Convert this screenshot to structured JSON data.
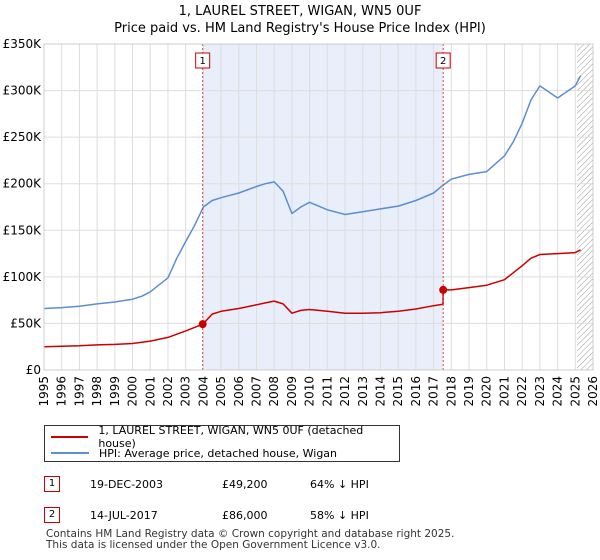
{
  "title_line1": "1, LAUREL STREET, WIGAN, WN5 0UF",
  "title_line2": "Price paid vs. HM Land Registry's House Price Index (HPI)",
  "chart_data": {
    "type": "line",
    "xlim": [
      1995,
      2026
    ],
    "ylim": [
      0,
      350000
    ],
    "y_ticks": [
      {
        "value": 0,
        "label": "£0"
      },
      {
        "value": 50000,
        "label": "£50K"
      },
      {
        "value": 100000,
        "label": "£100K"
      },
      {
        "value": 150000,
        "label": "£150K"
      },
      {
        "value": 200000,
        "label": "£200K"
      },
      {
        "value": 250000,
        "label": "£250K"
      },
      {
        "value": 300000,
        "label": "£300K"
      },
      {
        "value": 350000,
        "label": "£350K"
      }
    ],
    "x_ticks": [
      "1995",
      "1996",
      "1997",
      "1998",
      "1999",
      "2000",
      "2001",
      "2002",
      "2003",
      "2004",
      "2005",
      "2006",
      "2007",
      "2008",
      "2009",
      "2010",
      "2011",
      "2012",
      "2013",
      "2014",
      "2015",
      "2016",
      "2017",
      "2018",
      "2019",
      "2020",
      "2021",
      "2022",
      "2023",
      "2024",
      "2025",
      "2026"
    ],
    "shaded_period": [
      2003.96,
      2017.54
    ],
    "forecast_start": 2025.1,
    "series": [
      {
        "name": "1, LAUREL STREET, WIGAN, WN5 0UF (detached house)",
        "color": "#cc0000",
        "x": [
          1995,
          1996,
          1997,
          1998,
          1999,
          2000,
          2001,
          2002,
          2003,
          2003.96,
          2004.5,
          2005,
          2006,
          2007,
          2007.5,
          2008,
          2008.5,
          2009,
          2009.5,
          2010,
          2011,
          2012,
          2013,
          2014,
          2015,
          2016,
          2017,
          2017.53,
          2017.54,
          2018,
          2019,
          2020,
          2021,
          2022,
          2022.5,
          2023,
          2024,
          2025,
          2025.3
        ],
        "y": [
          25000,
          25500,
          26000,
          27000,
          27500,
          28500,
          31000,
          35000,
          42000,
          49200,
          60000,
          63000,
          66000,
          70000,
          72000,
          74000,
          71000,
          61000,
          64000,
          65000,
          63000,
          61000,
          61000,
          61500,
          63000,
          65500,
          69000,
          70500,
          86000,
          86000,
          88500,
          91000,
          97000,
          112000,
          120000,
          124000,
          125000,
          126000,
          129000
        ]
      },
      {
        "name": "HPI: Average price, detached house, Wigan",
        "color": "#5b8fd0",
        "x": [
          1995,
          1996,
          1997,
          1998,
          1999,
          2000,
          2000.5,
          2001,
          2002,
          2002.5,
          2003,
          2003.5,
          2004,
          2004.5,
          2005,
          2006,
          2007,
          2007.5,
          2008,
          2008.5,
          2009,
          2009.5,
          2010,
          2011,
          2012,
          2013,
          2014,
          2015,
          2016,
          2017,
          2017.5,
          2018,
          2019,
          2020,
          2021,
          2021.5,
          2022,
          2022.5,
          2023,
          2024,
          2025,
          2025.3
        ],
        "y": [
          66000,
          67000,
          68500,
          71000,
          73000,
          76000,
          79000,
          84000,
          99000,
          120000,
          138000,
          155000,
          175000,
          182000,
          185000,
          190000,
          197000,
          200000,
          202000,
          192000,
          168000,
          175000,
          180000,
          172000,
          167000,
          170000,
          173000,
          176000,
          182000,
          190000,
          198000,
          205000,
          210000,
          213000,
          230000,
          245000,
          265000,
          290000,
          305000,
          292000,
          305000,
          316000
        ]
      }
    ],
    "sale_markers": [
      {
        "label": "1",
        "x": 2003.96,
        "y": 49200
      },
      {
        "label": "2",
        "x": 2017.54,
        "y": 86000
      }
    ],
    "legend_position": "below"
  },
  "legend": {
    "items": [
      {
        "label": "1, LAUREL STREET, WIGAN, WN5 0UF (detached house)",
        "color": "#cc0000"
      },
      {
        "label": "HPI: Average price, detached house, Wigan",
        "color": "#5b8fd0"
      }
    ]
  },
  "sales": [
    {
      "num": "1",
      "date": "19-DEC-2003",
      "price": "£49,200",
      "hpi": "64% ↓ HPI"
    },
    {
      "num": "2",
      "date": "14-JUL-2017",
      "price": "£86,000",
      "hpi": "58% ↓ HPI"
    }
  ],
  "footer": {
    "line1": "Contains HM Land Registry data © Crown copyright and database right 2025.",
    "line2": "This data is licensed under the Open Government Licence v3.0."
  }
}
